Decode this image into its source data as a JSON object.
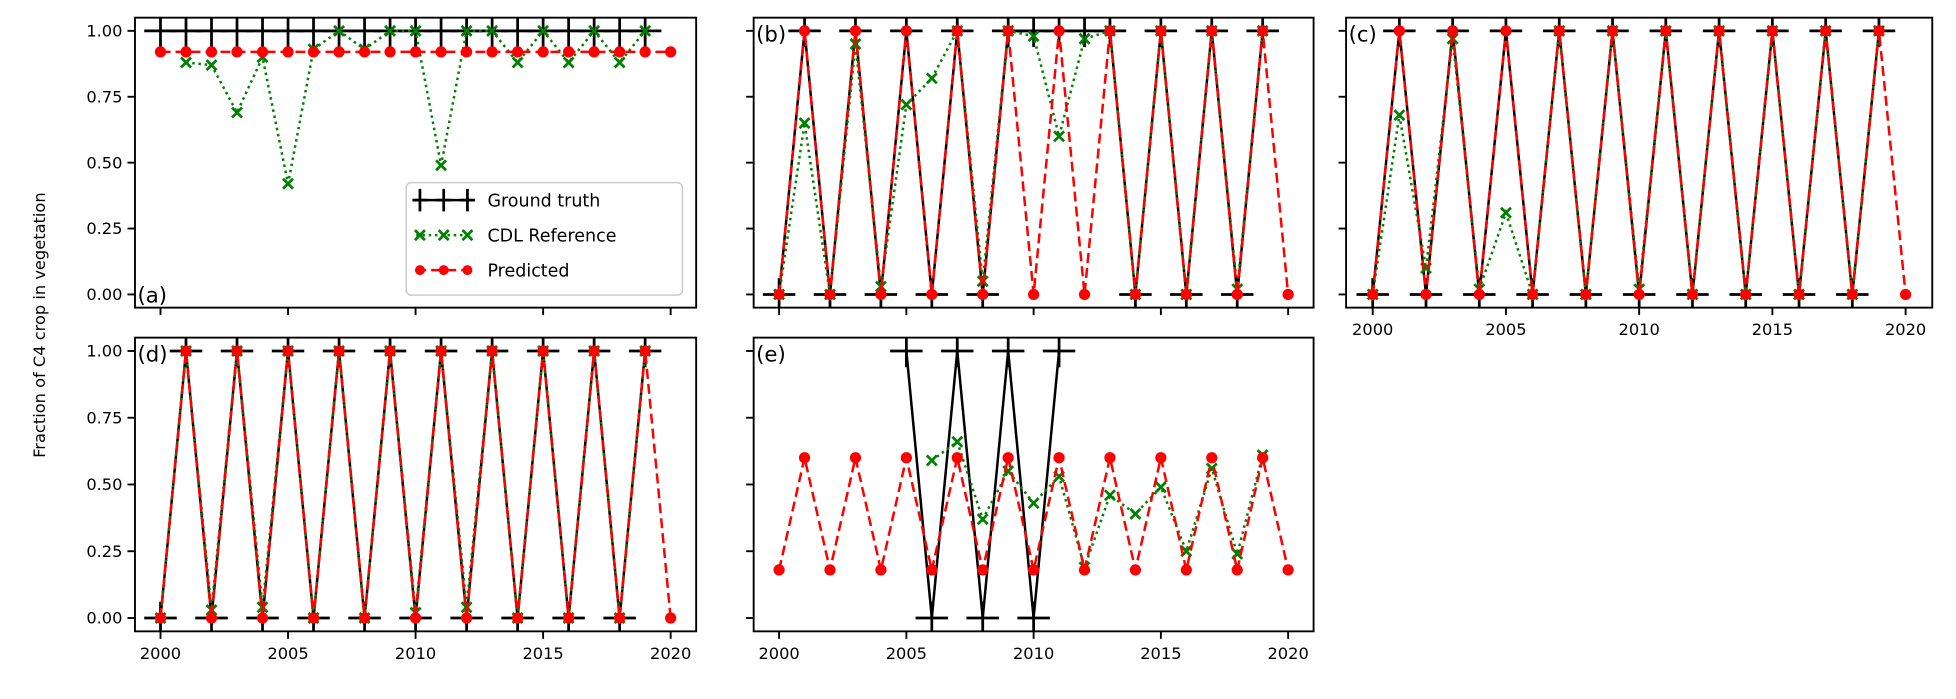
{
  "chart_data": {
    "type": "line",
    "ylabel": "Fraction of C4 crop in vegetation",
    "xlim": [
      1999,
      2021
    ],
    "ylim": [
      -0.05,
      1.05
    ],
    "xticks": [
      "2000",
      "2005",
      "2010",
      "2015",
      "2020"
    ],
    "yticks": [
      "0.00",
      "0.25",
      "0.50",
      "0.75",
      "1.00"
    ],
    "legend": {
      "placement": "lower-right of panel (a)",
      "entries": [
        "Ground truth",
        "CDL Reference",
        "Predicted"
      ]
    },
    "series_styles": {
      "Ground truth": {
        "color": "#000000",
        "marker": "plus",
        "line": "solid"
      },
      "CDL Reference": {
        "color": "#008000",
        "marker": "x",
        "line": "dotted"
      },
      "Predicted": {
        "color": "#ff0000",
        "marker": "circle",
        "line": "dashed"
      }
    },
    "panels": [
      {
        "label": "(a)",
        "ground_truth": {
          "x": [
            2000,
            2001,
            2002,
            2003,
            2004,
            2005,
            2006,
            2007,
            2008,
            2009,
            2010,
            2011,
            2012,
            2013,
            2014,
            2015,
            2016,
            2017,
            2018,
            2019
          ],
          "y": [
            1,
            1,
            1,
            1,
            1,
            1,
            1,
            1,
            1,
            1,
            1,
            1,
            1,
            1,
            1,
            1,
            1,
            1,
            1,
            1
          ]
        },
        "cdl": {
          "x": [
            2001,
            2002,
            2003,
            2004,
            2005,
            2006,
            2007,
            2008,
            2009,
            2010,
            2011,
            2012,
            2013,
            2014,
            2015,
            2016,
            2017,
            2018,
            2019
          ],
          "y": [
            0.88,
            0.87,
            0.69,
            0.9,
            0.42,
            0.93,
            1.0,
            0.93,
            1.0,
            1.0,
            0.49,
            1.0,
            1.0,
            0.88,
            1.0,
            0.88,
            1.0,
            0.88,
            1.0
          ]
        },
        "predicted": {
          "x": [
            2000,
            2001,
            2002,
            2003,
            2004,
            2005,
            2006,
            2007,
            2008,
            2009,
            2010,
            2011,
            2012,
            2013,
            2014,
            2015,
            2016,
            2017,
            2018,
            2019,
            2020
          ],
          "y": [
            0.92,
            0.92,
            0.92,
            0.92,
            0.92,
            0.92,
            0.92,
            0.92,
            0.92,
            0.92,
            0.92,
            0.92,
            0.92,
            0.92,
            0.92,
            0.92,
            0.92,
            0.92,
            0.92,
            0.92,
            0.92
          ]
        }
      },
      {
        "label": "(b)",
        "ground_truth": {
          "x": [
            2000,
            2001,
            2002,
            2003,
            2004,
            2005,
            2006,
            2007,
            2008,
            2009,
            2010,
            2011,
            2012,
            2013,
            2014,
            2015,
            2016,
            2017,
            2018,
            2019
          ],
          "y": [
            0,
            1,
            0,
            1,
            0,
            1,
            0,
            1,
            0,
            1,
            1,
            1,
            1,
            1,
            0,
            1,
            0,
            1,
            0,
            1
          ]
        },
        "cdl": {
          "x": [
            2000,
            2001,
            2002,
            2003,
            2004,
            2005,
            2006,
            2007,
            2008,
            2009,
            2010,
            2011,
            2012,
            2013,
            2014,
            2015,
            2016,
            2017,
            2018,
            2019
          ],
          "y": [
            0,
            0.65,
            0,
            0.95,
            0.03,
            0.72,
            0.82,
            1.0,
            0.05,
            1.0,
            0.98,
            0.6,
            0.97,
            1.0,
            0,
            1,
            0,
            1,
            0.02,
            1
          ]
        },
        "predicted": {
          "x": [
            2000,
            2001,
            2002,
            2003,
            2004,
            2005,
            2006,
            2007,
            2008,
            2009,
            2010,
            2011,
            2012,
            2013,
            2014,
            2015,
            2016,
            2017,
            2018,
            2019,
            2020
          ],
          "y": [
            0,
            1,
            0,
            1,
            0,
            1,
            0,
            1,
            0,
            1,
            0,
            1,
            0,
            1,
            0,
            1,
            0,
            1,
            0,
            1,
            0
          ]
        }
      },
      {
        "label": "(c)",
        "ground_truth": {
          "x": [
            2000,
            2001,
            2002,
            2003,
            2004,
            2005,
            2006,
            2007,
            2008,
            2009,
            2010,
            2011,
            2012,
            2013,
            2014,
            2015,
            2016,
            2017,
            2018,
            2019
          ],
          "y": [
            0,
            1,
            0,
            1,
            0,
            1,
            0,
            1,
            0,
            1,
            0,
            1,
            0,
            1,
            0,
            1,
            0,
            1,
            0,
            1
          ]
        },
        "cdl": {
          "x": [
            2000,
            2001,
            2002,
            2003,
            2004,
            2005,
            2006,
            2007,
            2008,
            2009,
            2010,
            2011,
            2012,
            2013,
            2014,
            2015,
            2016,
            2017,
            2018,
            2019
          ],
          "y": [
            0,
            0.68,
            0.1,
            0.97,
            0.02,
            0.31,
            0,
            1,
            0,
            1,
            0.02,
            1,
            0,
            1,
            0,
            1,
            0,
            1,
            0,
            1
          ]
        },
        "predicted": {
          "x": [
            2000,
            2001,
            2002,
            2003,
            2004,
            2005,
            2006,
            2007,
            2008,
            2009,
            2010,
            2011,
            2012,
            2013,
            2014,
            2015,
            2016,
            2017,
            2018,
            2019,
            2020
          ],
          "y": [
            0,
            1,
            0,
            1,
            0,
            1,
            0,
            1,
            0,
            1,
            0,
            1,
            0,
            1,
            0,
            1,
            0,
            1,
            0,
            1,
            0
          ]
        }
      },
      {
        "label": "(d)",
        "ground_truth": {
          "x": [
            2000,
            2001,
            2002,
            2003,
            2004,
            2005,
            2006,
            2007,
            2008,
            2009,
            2010,
            2011,
            2012,
            2013,
            2014,
            2015,
            2016,
            2017,
            2018,
            2019
          ],
          "y": [
            0,
            1,
            0,
            1,
            0,
            1,
            0,
            1,
            0,
            1,
            0,
            1,
            0,
            1,
            0,
            1,
            0,
            1,
            0,
            1
          ]
        },
        "cdl": {
          "x": [
            2000,
            2001,
            2002,
            2003,
            2004,
            2005,
            2006,
            2007,
            2008,
            2009,
            2010,
            2011,
            2012,
            2013,
            2014,
            2015,
            2016,
            2017,
            2018,
            2019
          ],
          "y": [
            0,
            1,
            0.03,
            1,
            0.04,
            1,
            0,
            1,
            0,
            1,
            0.02,
            1,
            0.04,
            1,
            0,
            1,
            0,
            1,
            0,
            1
          ]
        },
        "predicted": {
          "x": [
            2000,
            2001,
            2002,
            2003,
            2004,
            2005,
            2006,
            2007,
            2008,
            2009,
            2010,
            2011,
            2012,
            2013,
            2014,
            2015,
            2016,
            2017,
            2018,
            2019,
            2020
          ],
          "y": [
            0,
            1,
            0,
            1,
            0,
            1,
            0,
            1,
            0,
            1,
            0,
            1,
            0,
            1,
            0,
            1,
            0,
            1,
            0,
            1,
            0
          ]
        }
      },
      {
        "label": "(e)",
        "ground_truth": {
          "x": [
            2005,
            2006,
            2007,
            2008,
            2009,
            2010,
            2011
          ],
          "y": [
            1,
            0,
            1,
            0,
            1,
            0,
            1
          ]
        },
        "cdl": {
          "x": [
            2006,
            2007,
            2008,
            2009,
            2010,
            2011,
            2012,
            2013,
            2014,
            2015,
            2016,
            2017,
            2018,
            2019
          ],
          "y": [
            0.59,
            0.66,
            0.37,
            0.55,
            0.43,
            0.53,
            0.19,
            0.46,
            0.39,
            0.49,
            0.25,
            0.56,
            0.24,
            0.61
          ]
        },
        "predicted": {
          "x": [
            2000,
            2001,
            2002,
            2003,
            2004,
            2005,
            2006,
            2007,
            2008,
            2009,
            2010,
            2011,
            2012,
            2013,
            2014,
            2015,
            2016,
            2017,
            2018,
            2019,
            2020
          ],
          "y": [
            0.18,
            0.6,
            0.18,
            0.6,
            0.18,
            0.6,
            0.18,
            0.6,
            0.18,
            0.6,
            0.18,
            0.6,
            0.18,
            0.6,
            0.18,
            0.6,
            0.18,
            0.6,
            0.18,
            0.6,
            0.18
          ]
        }
      }
    ]
  }
}
